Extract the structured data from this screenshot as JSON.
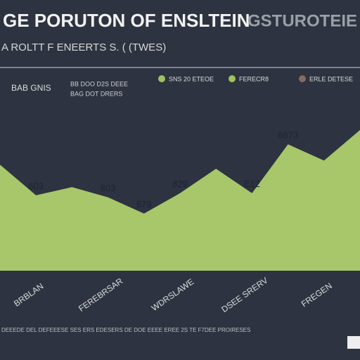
{
  "chart_data": {
    "type": "area",
    "title": "GE PORUTON OF ENSLTEIN",
    "title_right": "GSTUROTEIE Y",
    "subtitle": "A ROLTT F ENEERTS S. ( (TWES)",
    "legend_header": "BAB GNIS",
    "series": [
      {
        "name": "BAG DOT DRERS",
        "color": "#a8c76a",
        "values": [
          52,
          37,
          41,
          36,
          28,
          38,
          50,
          38,
          62,
          54,
          69
        ]
      }
    ],
    "legend_items": [
      {
        "label": "SNS 20 ETEOE",
        "color": "#9fc25e"
      },
      {
        "label": "FERECR8",
        "color": "#9fc25e"
      },
      {
        "label": "ERLE DETESE",
        "color": "#8a6a5a"
      }
    ],
    "header_note": "BB DOO D2S DEEE",
    "categories": [
      null,
      "BRBLAN",
      null,
      "FEREBRSAR",
      null,
      "WDRSLAWE",
      null,
      "DSEE SRERV",
      null,
      "FREGEN",
      null
    ],
    "annotations": [
      "603",
      "803",
      "679",
      "829",
      "E12",
      "8673"
    ],
    "ylim": [
      0,
      100
    ],
    "footnote": "DEEEDE DEL DEFEEESE SES ERS EDESERS DE DOE EEEE EREE 2S TE F7DEE PROIRESES"
  }
}
